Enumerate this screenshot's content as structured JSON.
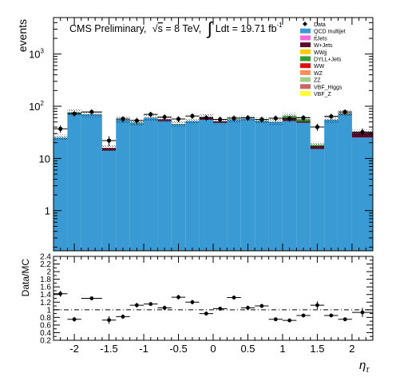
{
  "chart_data": [
    {
      "type": "bar",
      "stacked": true,
      "yscale": "log",
      "title": "CMS Preliminary, √s = 8 TeV, ∫ Ldt = 19.71 fb⁻¹",
      "title_parts": {
        "main": "CMS Preliminary,",
        "sqrt_symbol": "√",
        "sqrt_arg": "s",
        "energy": " = 8 TeV,",
        "integral_symbol": "∫",
        "lumi": "Ldt = 19.71 fb",
        "lumi_exp": "-1"
      },
      "ylabel": "events",
      "xlim": [
        -2.3,
        2.3
      ],
      "ylim": [
        0.17,
        5000
      ],
      "yticks": [
        {
          "value": 1,
          "label": "1"
        },
        {
          "value": 10,
          "label": "10"
        },
        {
          "value": 100,
          "label": "10",
          "exp": "2"
        },
        {
          "value": 1000,
          "label": "10",
          "exp": "3"
        }
      ],
      "bin_edges": [
        -2.3,
        -2.1,
        -1.9,
        -1.6,
        -1.4,
        -1.2,
        -1.0,
        -0.8,
        -0.6,
        -0.4,
        -0.2,
        0.0,
        0.2,
        0.4,
        0.6,
        0.8,
        1.0,
        1.2,
        1.4,
        1.6,
        1.8,
        2.0,
        2.3
      ],
      "series": [
        {
          "name": "QCD multijet",
          "color": "#3a9ad4",
          "values": [
            25,
            75,
            70,
            14,
            55,
            48,
            60,
            52,
            45,
            52,
            55,
            48,
            55,
            58,
            52,
            50,
            52,
            48,
            15,
            55,
            70,
            25
          ]
        },
        {
          "name": "W+jets",
          "color": "#5c0a2c",
          "values": [
            0,
            0,
            0,
            1.7,
            0,
            0,
            0,
            4,
            0,
            0,
            7,
            3.5,
            0,
            0,
            0,
            0,
            7,
            3,
            2,
            0,
            2,
            6
          ]
        },
        {
          "name": "DYLL+Jets",
          "color": "#2e9e2e",
          "values": [
            0,
            1.5,
            0,
            0,
            0,
            0.75,
            0,
            0,
            0.65,
            0,
            0,
            0,
            0.7,
            0,
            0.8,
            0,
            6,
            5,
            1,
            0,
            1.3,
            0
          ]
        },
        {
          "name": "ZZ",
          "color": "#9ecf8f",
          "values": [
            0,
            0,
            0,
            0,
            0,
            0,
            0,
            0,
            0.22,
            0,
            0,
            0,
            0.08,
            0,
            0,
            0,
            0,
            0,
            0,
            0,
            0,
            0
          ]
        },
        {
          "name": "WZ",
          "color": "#ff8c5a",
          "values": [
            0,
            0,
            0,
            0,
            0,
            0,
            0,
            0.08,
            0.03,
            0,
            0,
            0,
            0,
            0,
            0,
            0,
            0.1,
            0,
            0,
            0,
            0.05,
            0
          ]
        }
      ],
      "legend": {
        "placement": "top-right",
        "entries": [
          {
            "label": "Data",
            "color": "#000000",
            "style": "marker"
          },
          {
            "label": "QCD multijet",
            "color": "#3a9ad4"
          },
          {
            "label": "tt̄Jets",
            "color": "#ff66d9"
          },
          {
            "label": "W+Jets",
            "color": "#5c0a2c"
          },
          {
            "label": "WWjj",
            "color": "#ffcc00"
          },
          {
            "label": "DYLL+Jets",
            "color": "#2e9e2e"
          },
          {
            "label": "WW",
            "color": "#dd1010"
          },
          {
            "label": "WZ",
            "color": "#ff8c5a"
          },
          {
            "label": "ZZ",
            "color": "#9ecf8f"
          },
          {
            "label": "VBF_Higgs",
            "color": "#cc6666"
          },
          {
            "label": "VBF_Z",
            "color": "#ffff33"
          }
        ]
      },
      "data_points": {
        "x": [
          -2.2,
          -2.0,
          -1.75,
          -1.5,
          -1.3,
          -1.1,
          -0.9,
          -0.7,
          -0.5,
          -0.3,
          -0.1,
          0.1,
          0.3,
          0.5,
          0.7,
          0.9,
          1.1,
          1.3,
          1.5,
          1.7,
          1.9,
          2.15
        ],
        "y": [
          37,
          72,
          78,
          22,
          57,
          53,
          70,
          62,
          57,
          65,
          60,
          56,
          59,
          60,
          56,
          59,
          58,
          60,
          40,
          64,
          78,
          32
        ]
      }
    },
    {
      "type": "scatter",
      "ylabel": "Data/MC",
      "xlabel": "η",
      "xlabel_sub": "τ",
      "xlim": [
        -2.3,
        2.3
      ],
      "ylim": [
        0.2,
        2.4
      ],
      "reference_line": 1.0,
      "xticks": [
        {
          "value": -2,
          "label": "-2"
        },
        {
          "value": -1.5,
          "label": "-1.5"
        },
        {
          "value": -1,
          "label": "-1"
        },
        {
          "value": -0.5,
          "label": "-0.5"
        },
        {
          "value": 0,
          "label": "0"
        },
        {
          "value": 0.5,
          "label": "0.5"
        },
        {
          "value": 1,
          "label": "1"
        },
        {
          "value": 1.5,
          "label": "1.5"
        },
        {
          "value": 2,
          "label": "2"
        }
      ],
      "yticks": [
        {
          "value": 0.2,
          "label": "0.2"
        },
        {
          "value": 0.4,
          "label": "0.4"
        },
        {
          "value": 0.6,
          "label": "0.6"
        },
        {
          "value": 0.8,
          "label": "0.8"
        },
        {
          "value": 1.0,
          "label": "1"
        },
        {
          "value": 1.2,
          "label": "1.2"
        },
        {
          "value": 1.4,
          "label": "1.4"
        },
        {
          "value": 1.6,
          "label": "1.6"
        },
        {
          "value": 1.8,
          "label": "1.8"
        },
        {
          "value": 2.0,
          "label": "2"
        },
        {
          "value": 2.2,
          "label": "2.2"
        },
        {
          "value": 2.4,
          "label": "2.4"
        }
      ],
      "points": {
        "x": [
          -2.2,
          -2.0,
          -1.75,
          -1.5,
          -1.3,
          -1.1,
          -0.9,
          -0.7,
          -0.5,
          -0.3,
          -0.1,
          0.1,
          0.3,
          0.5,
          0.7,
          0.9,
          1.1,
          1.3,
          1.5,
          1.7,
          1.9,
          2.15
        ],
        "xerr": [
          0.1,
          0.1,
          0.15,
          0.1,
          0.1,
          0.1,
          0.1,
          0.1,
          0.1,
          0.1,
          0.1,
          0.1,
          0.1,
          0.1,
          0.1,
          0.1,
          0.1,
          0.1,
          0.1,
          0.1,
          0.1,
          0.15
        ],
        "y": [
          1.42,
          0.75,
          1.3,
          0.73,
          0.82,
          1.12,
          1.15,
          1.05,
          1.33,
          1.2,
          0.9,
          1.03,
          1.32,
          1.05,
          1.1,
          0.75,
          0.72,
          0.85,
          1.12,
          0.85,
          0.75,
          0.93
        ],
        "yerr": [
          0.08,
          0.06,
          0.05,
          0.1,
          0.06,
          0.06,
          0.05,
          0.06,
          0.06,
          0.06,
          0.05,
          0.05,
          0.05,
          0.06,
          0.05,
          0.05,
          0.05,
          0.05,
          0.1,
          0.05,
          0.05,
          0.12
        ]
      }
    }
  ]
}
